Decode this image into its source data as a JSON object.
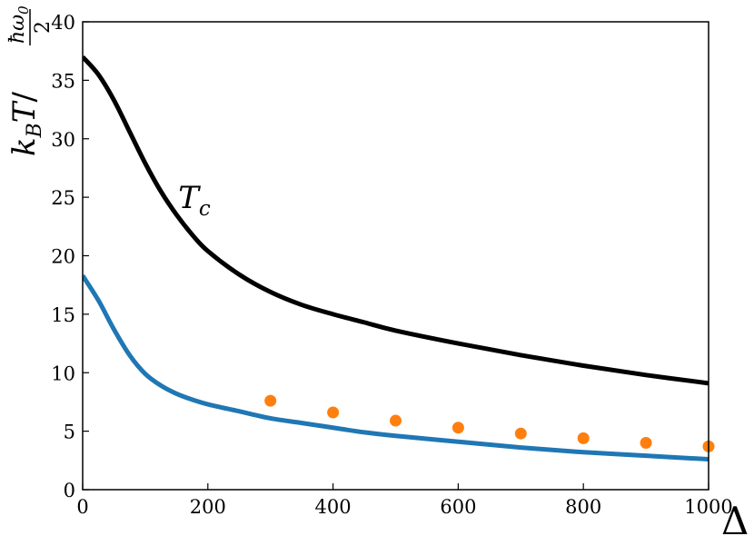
{
  "chart_data": {
    "type": "line",
    "title": "",
    "xlabel": "Δ",
    "ylabel": "k_B T / (ħω₀ / 2)",
    "ylabel_parts": {
      "k": "k",
      "B": "B",
      "T": "T",
      "slash": "/",
      "num": "ħω",
      "sub0": "0",
      "den": "2"
    },
    "xlim": [
      0,
      1000
    ],
    "ylim": [
      0,
      40
    ],
    "x_ticks": [
      0,
      200,
      400,
      600,
      800,
      1000
    ],
    "y_ticks": [
      0,
      5,
      10,
      15,
      20,
      25,
      30,
      35,
      40
    ],
    "x_tick_labels": [
      "0",
      "200",
      "400",
      "600",
      "800",
      "1000"
    ],
    "y_tick_labels": [
      "0",
      "5",
      "10",
      "15",
      "20",
      "25",
      "30",
      "35",
      "40"
    ],
    "grid": false,
    "annotations": [
      {
        "text_main": "T",
        "text_sub": "c",
        "x": 160,
        "y": 25
      }
    ],
    "series": [
      {
        "type": "line",
        "color": "#000000",
        "x": [
          0,
          25,
          50,
          75,
          100,
          125,
          150,
          175,
          200,
          250,
          300,
          350,
          400,
          450,
          500,
          600,
          700,
          800,
          900,
          1000
        ],
        "y": [
          37.0,
          35.5,
          33.3,
          30.6,
          27.9,
          25.5,
          23.5,
          21.8,
          20.4,
          18.4,
          16.9,
          15.8,
          15.0,
          14.3,
          13.6,
          12.5,
          11.5,
          10.6,
          9.8,
          9.1
        ]
      },
      {
        "type": "line",
        "color": "#1f77b4",
        "x": [
          0,
          25,
          50,
          75,
          100,
          125,
          150,
          175,
          200,
          250,
          300,
          350,
          400,
          450,
          500,
          600,
          700,
          800,
          900,
          1000
        ],
        "y": [
          18.3,
          16.2,
          13.7,
          11.5,
          9.9,
          8.9,
          8.2,
          7.7,
          7.3,
          6.7,
          6.1,
          5.7,
          5.3,
          4.9,
          4.6,
          4.1,
          3.6,
          3.2,
          2.9,
          2.6
        ]
      },
      {
        "type": "scatter",
        "color": "#ff7f0e",
        "x": [
          300,
          400,
          500,
          600,
          700,
          800,
          900,
          1000
        ],
        "y": [
          7.6,
          6.6,
          5.9,
          5.3,
          4.8,
          4.4,
          4.0,
          3.7
        ]
      }
    ]
  }
}
